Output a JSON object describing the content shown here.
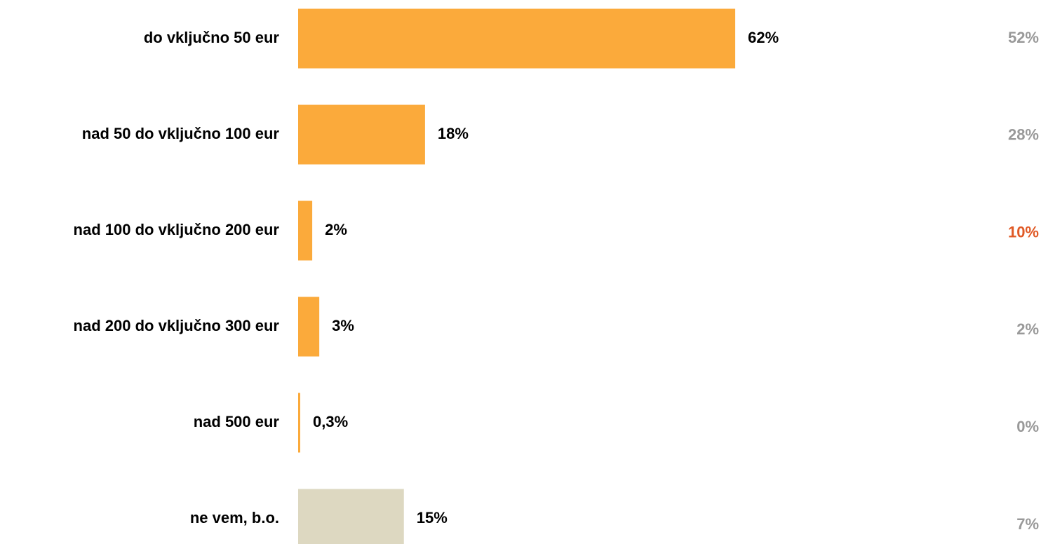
{
  "chart_data": {
    "type": "bar",
    "orientation": "horizontal",
    "categories": [
      "do vključno 50 eur",
      "nad 50 do vključno 100 eur",
      "nad 100 do vključno 200 eur",
      "nad 200 do vključno 300 eur",
      "nad 500 eur",
      "ne vem, b.o."
    ],
    "values": [
      62,
      18,
      2,
      3,
      0.3,
      15
    ],
    "value_labels": [
      "62%",
      "18%",
      "2%",
      "3%",
      "0,3%",
      "15%"
    ],
    "colors": [
      "#fbaa3b",
      "#fbaa3b",
      "#fbaa3b",
      "#fbaa3b",
      "#fbaa3b",
      "#ddd8c1"
    ],
    "comparison": {
      "values": [
        52,
        28,
        10,
        2,
        0,
        7
      ],
      "value_labels": [
        "52%",
        "28%",
        "10%",
        "2%",
        "0%",
        "7%"
      ],
      "colors": [
        "#999999",
        "#999999",
        "#e05a26",
        "#999999",
        "#999999",
        "#999999"
      ]
    }
  }
}
